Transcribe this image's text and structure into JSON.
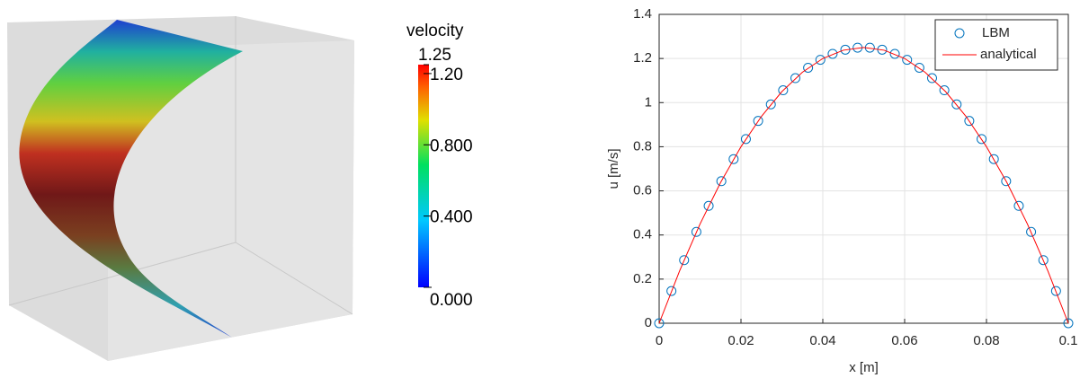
{
  "chart_data": [
    {
      "type": "colorbar",
      "title": "velocity",
      "clim": [
        0,
        1.25
      ],
      "cticks": [
        {
          "value": 1.2,
          "label": "1.20"
        },
        {
          "value": 0.8,
          "label": "0.800"
        },
        {
          "value": 0.4,
          "label": "0.400"
        },
        {
          "value": 0,
          "label": "0.000"
        }
      ]
    },
    {
      "type": "line",
      "xlabel": "x [m]",
      "ylabel": "u [m/s]",
      "xlim": [
        0,
        0.1
      ],
      "xticks": [
        0,
        0.02,
        0.04,
        0.06,
        0.08,
        0.1
      ],
      "ylim": [
        0,
        1.4
      ],
      "yticks": [
        0,
        0.2,
        0.4,
        0.6,
        0.8,
        1,
        1.2,
        1.4
      ],
      "grid": true,
      "legend": "top-right",
      "series": [
        {
          "name": "LBM",
          "color": "#0072bd",
          "mode": "markers",
          "x": [
            0,
            0.003,
            0.0061,
            0.0091,
            0.0121,
            0.0152,
            0.0182,
            0.0212,
            0.0242,
            0.0273,
            0.0303,
            0.0333,
            0.0364,
            0.0394,
            0.0424,
            0.0455,
            0.0485,
            0.0515,
            0.0545,
            0.0576,
            0.0606,
            0.0636,
            0.0667,
            0.0697,
            0.0727,
            0.0758,
            0.0788,
            0.0818,
            0.0848,
            0.0879,
            0.0909,
            0.0939,
            0.097,
            0.1
          ],
          "values": [
            0,
            0.146,
            0.286,
            0.414,
            0.532,
            0.644,
            0.744,
            0.835,
            0.917,
            0.992,
            1.056,
            1.111,
            1.158,
            1.194,
            1.221,
            1.24,
            1.249,
            1.249,
            1.24,
            1.221,
            1.194,
            1.158,
            1.111,
            1.056,
            0.992,
            0.917,
            0.835,
            0.744,
            0.644,
            0.532,
            0.414,
            0.286,
            0.146,
            0
          ]
        },
        {
          "name": "analytical",
          "color": "#ff0000",
          "mode": "lines",
          "x": [
            0,
            0.005,
            0.01,
            0.015,
            0.02,
            0.025,
            0.03,
            0.035,
            0.04,
            0.045,
            0.05,
            0.055,
            0.06,
            0.065,
            0.07,
            0.075,
            0.08,
            0.085,
            0.09,
            0.095,
            0.1
          ],
          "values": [
            0,
            0.2375,
            0.45,
            0.6375,
            0.8,
            0.9375,
            1.05,
            1.1375,
            1.2,
            1.2375,
            1.25,
            1.2375,
            1.2,
            1.1375,
            1.05,
            0.9375,
            0.8,
            0.6375,
            0.45,
            0.2375,
            0
          ]
        }
      ]
    }
  ]
}
